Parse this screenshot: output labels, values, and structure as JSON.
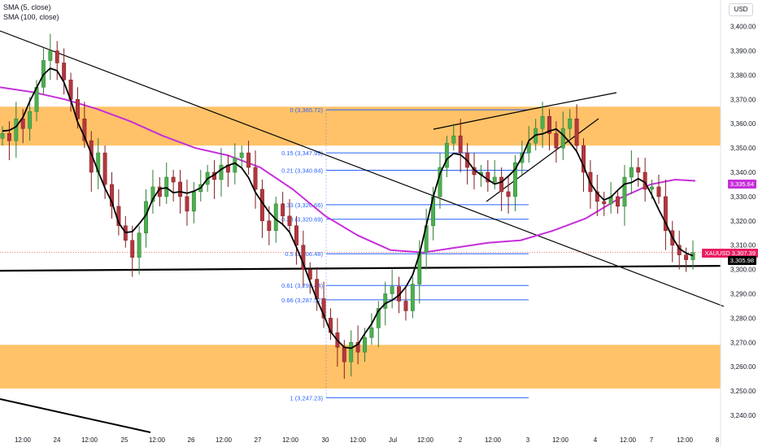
{
  "legend": {
    "sma5": "SMA (5, close)",
    "sma100": "SMA (100, close)"
  },
  "currency": "USD",
  "price_tags": {
    "sma100": "3,335.64",
    "symbol": "XAUUSD",
    "last": "3,307.39",
    "prev": "3,305.98"
  },
  "colors": {
    "up": "#26a69a",
    "down": "#ef5350",
    "up_body": "#4caf50",
    "down_body": "#b2373f",
    "zone": "#ffb74d",
    "sma100": "#c62eda",
    "fib": "#2962ff",
    "tag_purple": "#c62eda",
    "tag_pink": "#e91e63",
    "tag_black": "#000000"
  },
  "chart_data": {
    "type": "candlestick",
    "symbol": "XAUUSD",
    "ylim": [
      3236,
      3405
    ],
    "y_ticks": [
      3240,
      3250,
      3260,
      3270,
      3280,
      3290,
      3300,
      3310,
      3320,
      3330,
      3340,
      3350,
      3360,
      3370,
      3380,
      3390,
      3400
    ],
    "y_tick_labels": [
      "3,240.00",
      "3,250.00",
      "3,260.00",
      "3,270.00",
      "3,280.00",
      "3,290.00",
      "3,300.00",
      "3,310.00",
      "3,320.00",
      "3,330.00",
      "3,340.00",
      "3,350.00",
      "3,360.00",
      "3,370.00",
      "3,380.00",
      "3,390.00",
      "3,400.00"
    ],
    "x_tick_labels": [
      "12:00",
      "24",
      "12:00",
      "25",
      "12:00",
      "26",
      "12:00",
      "27",
      "12:00",
      "30",
      "12:00",
      "Jul",
      "12:00",
      "2",
      "12:00",
      "3",
      "12:00",
      "4",
      "12:00",
      "7",
      "12:00",
      "8"
    ],
    "zones": [
      {
        "from": 3351,
        "to": 3367
      },
      {
        "from": 3251,
        "to": 3269
      }
    ],
    "fib_levels": [
      {
        "label": "0 (3,365.72)",
        "value": 3365.72
      },
      {
        "label": "0.15 (3,347.99)",
        "value": 3347.99
      },
      {
        "label": "0.21 (3,340.84)",
        "value": 3340.84
      },
      {
        "label": "0.33 (3,326.66)",
        "value": 3326.66
      },
      {
        "label": "0.38 (3,320.69)",
        "value": 3320.69
      },
      {
        "label": "0.5 (3,306.48)",
        "value": 3306.48
      },
      {
        "label": "0.61 (3,293.44)",
        "value": 3293.44
      },
      {
        "label": "0.66 (3,287.52)",
        "value": 3287.52
      },
      {
        "label": "1 (3,247.23)",
        "value": 3247.23
      }
    ],
    "horizontal_support": 3299.5,
    "series_close": [
      3356,
      3353,
      3362,
      3358,
      3365,
      3375,
      3386,
      3390,
      3385,
      3378,
      3370,
      3362,
      3353,
      3340,
      3348,
      3335,
      3326,
      3318,
      3312,
      3305,
      3315,
      3328,
      3334,
      3330,
      3338,
      3336,
      3330,
      3324,
      3332,
      3335,
      3340,
      3337,
      3343,
      3340,
      3346,
      3348,
      3342,
      3333,
      3320,
      3316,
      3327,
      3322,
      3318,
      3310,
      3300,
      3296,
      3288,
      3280,
      3274,
      3268,
      3262,
      3270,
      3266,
      3272,
      3276,
      3284,
      3290,
      3293,
      3287,
      3283,
      3294,
      3307,
      3318,
      3330,
      3342,
      3352,
      3355,
      3348,
      3342,
      3339,
      3340,
      3336,
      3338,
      3332,
      3330,
      3344,
      3348,
      3352,
      3358,
      3363,
      3356,
      3350,
      3358,
      3362,
      3351,
      3340,
      3332,
      3328,
      3327,
      3330,
      3326,
      3338,
      3342,
      3340,
      3333,
      3334,
      3330,
      3316,
      3310,
      3306,
      3304,
      3307
    ]
  }
}
